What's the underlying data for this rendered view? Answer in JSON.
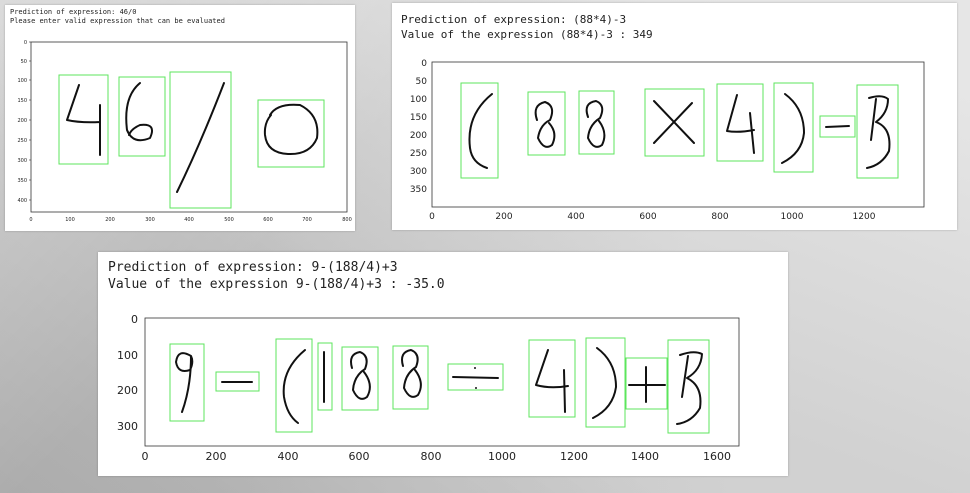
{
  "panels": [
    {
      "lines": [
        "Prediction of expression: 46/0",
        "Please enter valid expression that can be evaluated"
      ],
      "xticks": [
        "0",
        "100",
        "200",
        "300",
        "400",
        "500",
        "600",
        "700",
        "800"
      ],
      "yticks": [
        "0",
        "50",
        "100",
        "150",
        "200",
        "250",
        "300",
        "350",
        "400"
      ]
    },
    {
      "lines": [
        "Prediction of expression: (88*4)-3",
        "Value of the expression (88*4)-3 : 349"
      ],
      "xticks": [
        "0",
        "200",
        "400",
        "600",
        "800",
        "1000",
        "1200"
      ],
      "yticks": [
        "0",
        "50",
        "100",
        "150",
        "200",
        "250",
        "300",
        "350"
      ]
    },
    {
      "lines": [
        "Prediction of expression: 9-(188/4)+3",
        "Value of the expression 9-(188/4)+3 : -35.0"
      ],
      "xticks": [
        "0",
        "200",
        "400",
        "600",
        "800",
        "1000",
        "1200",
        "1400",
        "1600"
      ],
      "yticks": [
        "0",
        "100",
        "200",
        "300"
      ]
    }
  ],
  "colors": {
    "box": "#5ce65c",
    "ink": "#111111",
    "panel_bg": "#ffffff"
  }
}
